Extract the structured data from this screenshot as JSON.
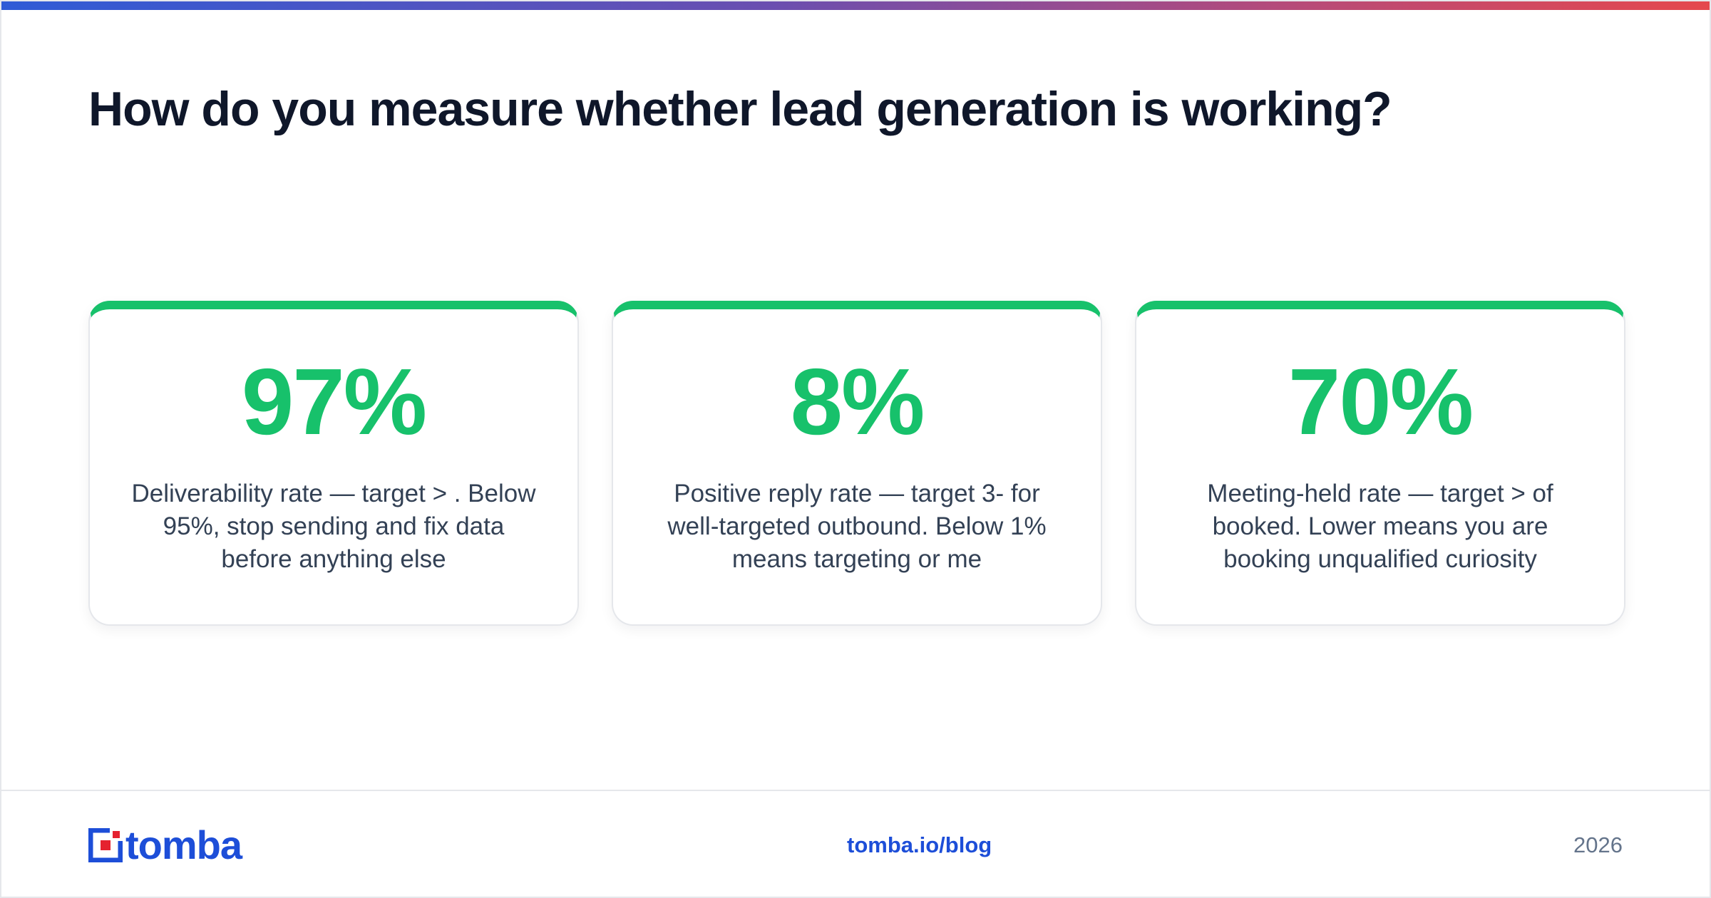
{
  "headline": "How do you measure whether lead generation is working?",
  "colors": {
    "accent": "#17c16b",
    "brand": "#1d4ed8",
    "logo_red": "#e5222f",
    "heading": "#0f172a",
    "body_text": "#334155",
    "muted": "#64748b"
  },
  "cards": [
    {
      "value": "97%",
      "description": "Deliverability rate — target > . Below 95%, stop sending and fix data before anything else"
    },
    {
      "value": "8%",
      "description": "Positive reply rate — target 3- for well-targeted outbound. Below 1% means targeting or me"
    },
    {
      "value": "70%",
      "description": "Meeting-held rate — target > of booked. Lower means you are booking unqualified curiosity"
    }
  ],
  "footer": {
    "logo_icon": "tomba-logo-icon",
    "logo_text": "tomba",
    "link": "tomba.io/blog",
    "year": "2026"
  }
}
